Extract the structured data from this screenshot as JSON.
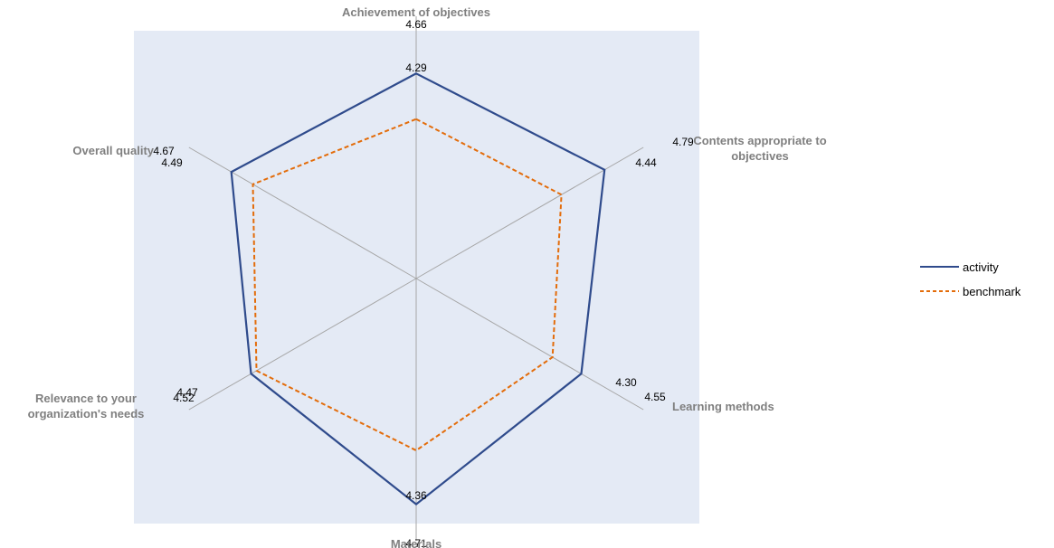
{
  "chart_data": {
    "type": "radar",
    "axes": [
      {
        "label": [
          "Achievement of objectives"
        ],
        "ticks": [
          "4.66",
          "4.29"
        ]
      },
      {
        "label": [
          "Contents appropriate to",
          "objectives"
        ],
        "ticks": [
          "4.79",
          "4.44"
        ]
      },
      {
        "label": [
          "Learning methods"
        ],
        "ticks": [
          "4.30",
          "4.55"
        ]
      },
      {
        "label": [
          "Materials"
        ],
        "ticks": [
          "4.71",
          "4.36"
        ]
      },
      {
        "label": [
          "Relevance to your",
          "organization's needs"
        ],
        "ticks": [
          "4.47",
          "4.52"
        ]
      },
      {
        "label": [
          "Overall quality"
        ],
        "ticks": [
          "4.67",
          "4.49"
        ]
      }
    ],
    "series": [
      {
        "name": "activity",
        "values": [
          0.99,
          1.05,
          0.92,
          1.09,
          0.92,
          1.03
        ],
        "color": "#2f4b8c",
        "dash": "solid"
      },
      {
        "name": "benchmark",
        "values": [
          0.77,
          0.81,
          0.76,
          0.83,
          0.89,
          0.91
        ],
        "color": "#e36c0a",
        "dash": "dashed"
      }
    ],
    "plot_background": "#e4eaf5",
    "legend": "right"
  }
}
